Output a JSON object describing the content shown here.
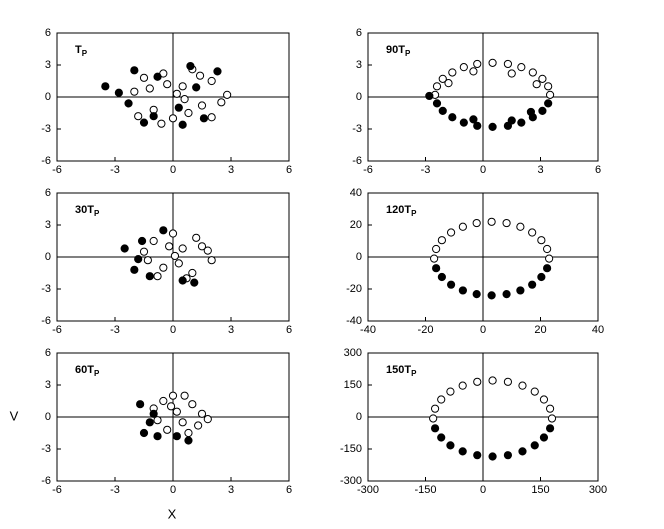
{
  "axis_labels": {
    "x": "X",
    "y": "V"
  },
  "chart_data": [
    {
      "type": "scatter",
      "label": "T",
      "label_sub": "P",
      "zero_lines": true,
      "xlim": [
        -6,
        6
      ],
      "ylim": [
        -6,
        6
      ],
      "xticks": [
        -6,
        -3,
        0,
        3,
        6
      ],
      "yticks": [
        -6,
        -3,
        0,
        3,
        6
      ],
      "series": [
        {
          "marker": "open",
          "color": "#000000",
          "x": [
            -2,
            -1.5,
            -1,
            -0.5,
            0,
            0.5,
            1,
            1.5,
            2,
            2.5,
            -1.8,
            -1.2,
            -0.6,
            0.2,
            0.8,
            1.4,
            2,
            2.8,
            -0.3,
            0.6
          ],
          "values": [
            0.5,
            1.8,
            -1.2,
            2.2,
            -2,
            1,
            2.6,
            -0.8,
            1.5,
            -0.5,
            -1.8,
            0.8,
            -2.5,
            0.3,
            -1.5,
            2,
            -1.9,
            0.2,
            1.2,
            -0.2
          ]
        },
        {
          "marker": "filled",
          "color": "#000000",
          "x": [
            -3.5,
            -2.8,
            -2.3,
            -1.5,
            -0.8,
            0.3,
            0.9,
            1.6,
            2.3,
            -2,
            -1,
            0.5,
            1.2
          ],
          "values": [
            1,
            0.4,
            -0.6,
            -2.4,
            1.9,
            -1,
            2.9,
            -2,
            2.4,
            2.5,
            -1.8,
            -2.6,
            0.9
          ]
        }
      ]
    },
    {
      "type": "scatter",
      "label": "90T",
      "label_sub": "P",
      "zero_lines": true,
      "xlim": [
        -6,
        6
      ],
      "ylim": [
        -6,
        6
      ],
      "xticks": [
        -6,
        -3,
        0,
        3,
        6
      ],
      "yticks": [
        -6,
        -3,
        0,
        3,
        6
      ],
      "series": [
        {
          "marker": "open",
          "color": "#000000",
          "x": [
            3.5,
            3.4,
            3.1,
            2.6,
            2.0,
            1.3,
            0.5,
            -0.3,
            -1.0,
            -1.6,
            -2.1,
            -2.4,
            -2.5,
            1.5,
            -0.5,
            2.8,
            -1.8
          ],
          "values": [
            0.2,
            1.0,
            1.7,
            2.3,
            2.8,
            3.1,
            3.2,
            3.1,
            2.8,
            2.3,
            1.7,
            1.0,
            0.2,
            2.2,
            2.4,
            1.2,
            1.3
          ]
        },
        {
          "marker": "filled",
          "color": "#000000",
          "x": [
            -2.4,
            -2.1,
            -1.6,
            -1.0,
            -0.3,
            0.5,
            1.3,
            2.0,
            2.6,
            3.1,
            3.4,
            -0.5,
            1.5,
            -2.8,
            2.5
          ],
          "values": [
            -0.6,
            -1.3,
            -1.9,
            -2.4,
            -2.7,
            -2.8,
            -2.7,
            -2.4,
            -1.9,
            -1.3,
            -0.6,
            -2.1,
            -2.2,
            0.1,
            -1.4
          ]
        }
      ]
    },
    {
      "type": "scatter",
      "label": "30T",
      "label_sub": "P",
      "zero_lines": true,
      "xlim": [
        -6,
        6
      ],
      "ylim": [
        -6,
        6
      ],
      "xticks": [
        -6,
        -3,
        0,
        3,
        6
      ],
      "yticks": [
        -6,
        -3,
        0,
        3,
        6
      ],
      "series": [
        {
          "marker": "open",
          "color": "#000000",
          "x": [
            -1.5,
            -1,
            -0.5,
            0,
            0.5,
            1,
            1.5,
            2,
            -0.8,
            0.3,
            1.2,
            -0.2,
            0.7,
            1.8,
            -1.3,
            0.1
          ],
          "values": [
            0.5,
            1.5,
            -1,
            2.2,
            0.8,
            -1.5,
            1,
            -0.3,
            -1.8,
            -0.6,
            1.8,
            1,
            -2,
            0.6,
            -0.3,
            0.1
          ]
        },
        {
          "marker": "filled",
          "color": "#000000",
          "x": [
            -2.5,
            -1.8,
            -2,
            -1.2,
            -0.5,
            0.5,
            1.1,
            -1.6
          ],
          "values": [
            0.8,
            -0.2,
            -1.2,
            -1.8,
            2.5,
            -2.2,
            -2.4,
            1.5
          ]
        }
      ]
    },
    {
      "type": "scatter",
      "label": "120T",
      "label_sub": "P",
      "zero_lines": true,
      "xlim": [
        -40,
        40
      ],
      "ylim": [
        -40,
        40
      ],
      "xticks": [
        -40,
        -20,
        0,
        20,
        40
      ],
      "yticks": [
        -40,
        -20,
        0,
        20,
        40
      ],
      "series": [
        {
          "marker": "open",
          "color": "#000000",
          "x": [
            23,
            22.3,
            20.3,
            17.1,
            13,
            8.2,
            3,
            -2.2,
            -7,
            -11.1,
            -14.3,
            -16.3,
            -17
          ],
          "values": [
            -1,
            5,
            10.5,
            15.3,
            18.9,
            21.2,
            22,
            21.2,
            18.9,
            15.3,
            10.5,
            5,
            -1
          ]
        },
        {
          "marker": "filled",
          "color": "#000000",
          "x": [
            -16.3,
            -14.3,
            -11.1,
            -7,
            -2.2,
            3,
            8.2,
            13,
            17.1,
            20.3,
            22.3
          ],
          "values": [
            -7,
            -12.5,
            -17.3,
            -20.9,
            -23.2,
            -24,
            -23.2,
            -20.9,
            -17.3,
            -12.5,
            -7
          ]
        }
      ]
    },
    {
      "type": "scatter",
      "label": "60T",
      "label_sub": "P",
      "zero_lines": true,
      "xlim": [
        -6,
        6
      ],
      "ylim": [
        -6,
        6
      ],
      "xticks": [
        -6,
        -3,
        0,
        3,
        6
      ],
      "yticks": [
        -6,
        -3,
        0,
        3,
        6
      ],
      "series": [
        {
          "marker": "open",
          "color": "#000000",
          "x": [
            -1,
            -0.5,
            0,
            0.5,
            1,
            1.5,
            -0.3,
            0.8,
            1.3,
            0.2,
            -0.8,
            0.6,
            1.8,
            -0.1
          ],
          "values": [
            0.8,
            1.5,
            2,
            -0.5,
            1.2,
            0.3,
            -1.2,
            -1.5,
            -0.8,
            0.5,
            -0.3,
            2,
            -0.2,
            1
          ]
        },
        {
          "marker": "filled",
          "color": "#000000",
          "x": [
            -1.7,
            -1.2,
            -1.5,
            -0.8,
            0.2,
            0.8,
            -1
          ],
          "values": [
            1.2,
            -0.5,
            -1.5,
            -1.8,
            -1.8,
            -2.2,
            0.3
          ]
        }
      ]
    },
    {
      "type": "scatter",
      "label": "150T",
      "label_sub": "P",
      "zero_lines": true,
      "xlim": [
        -300,
        300
      ],
      "ylim": [
        -300,
        300
      ],
      "xticks": [
        -300,
        -150,
        0,
        150,
        300
      ],
      "yticks": [
        -300,
        -150,
        0,
        150,
        300
      ],
      "series": [
        {
          "marker": "open",
          "color": "#000000",
          "x": [
            180,
            175,
            159,
            135,
            103,
            65,
            25,
            -15,
            -53,
            -85,
            -109,
            -125,
            -130
          ],
          "values": [
            -7,
            39,
            82,
            119,
            147,
            165,
            171,
            165,
            147,
            119,
            82,
            39,
            -7
          ]
        },
        {
          "marker": "filled",
          "color": "#000000",
          "x": [
            -125,
            -109,
            -85,
            -53,
            -15,
            25,
            65,
            103,
            135,
            159,
            175
          ],
          "values": [
            -53,
            -96,
            -133,
            -161,
            -179,
            -185,
            -179,
            -161,
            -133,
            -96,
            -53
          ]
        }
      ]
    }
  ]
}
